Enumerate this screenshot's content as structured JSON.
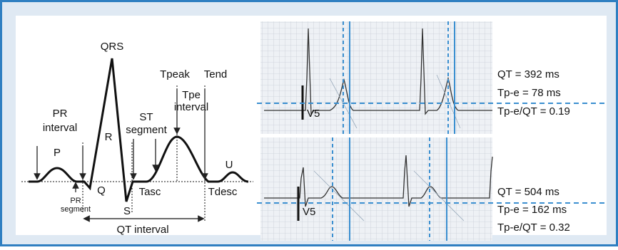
{
  "diagram": {
    "labels": {
      "qrs": "QRS",
      "tpeak": "Tpeak",
      "tend": "Tend",
      "tpe_interval": [
        "Tpe",
        "interval"
      ],
      "pr_interval": [
        "PR",
        "interval"
      ],
      "st_segment": [
        "ST",
        "segment"
      ],
      "r": "R",
      "p": "P",
      "u": "U",
      "q": "Q",
      "s": "S",
      "tasc": "Tasc",
      "tdesc": "Tdesc",
      "pr_segment": [
        "PR",
        "segment"
      ],
      "qt_interval": "QT interval"
    }
  },
  "panels": [
    {
      "lead": "V5",
      "measurements": [
        "QT = 392 ms",
        "Tp-e = 78 ms",
        "Tp-e/QT = 0.19"
      ]
    },
    {
      "lead": "V5",
      "measurements": [
        "QT = 504 ms",
        "Tp-e = 162 ms",
        "Tp-e/QT = 0.32"
      ]
    }
  ]
}
